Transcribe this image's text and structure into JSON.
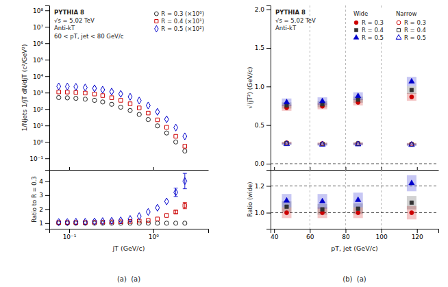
{
  "chart_data": [
    {
      "type": "scatter",
      "log": true,
      "xlim": [
        0.058,
        4.5
      ],
      "ylim": [
        0.02,
        200000000
      ],
      "xticks": [
        {
          "value": 0.1,
          "label": "10⁻¹"
        },
        {
          "value": 1,
          "label": "10⁰"
        }
      ],
      "yticks": [
        {
          "value": 0.1,
          "label": "10⁻¹"
        },
        {
          "value": 1,
          "label": "10⁰"
        },
        {
          "value": 10,
          "label": "10¹"
        },
        {
          "value": 100,
          "label": "10²"
        },
        {
          "value": 1000,
          "label": "10³"
        },
        {
          "value": 10000,
          "label": "10⁴"
        },
        {
          "value": 100000,
          "label": "10⁵"
        },
        {
          "value": 1000000,
          "label": "10⁶"
        },
        {
          "value": 10000000,
          "label": "10⁷"
        },
        {
          "value": 100000000,
          "label": "10⁸"
        }
      ],
      "tick_labels": "y",
      "ylabel": "1/Njets 1/jT dN/djT (c²/GeV²)",
      "annotations": [
        "PYTHIA 8",
        "√s = 5.02 TeV",
        "Anti-kT",
        "60 < pT, jet < 80 GeV/c"
      ],
      "legend": "upper right",
      "x": [
        0.075,
        0.095,
        0.12,
        0.155,
        0.2,
        0.25,
        0.32,
        0.41,
        0.53,
        0.68,
        0.87,
        1.12,
        1.44,
        1.85,
        2.37
      ],
      "series": [
        {
          "name": "R = 0.3 (×10⁰)",
          "color": "#222222",
          "marker": "circle-open",
          "values": [
            500,
            480,
            450,
            400,
            340,
            270,
            195,
            130,
            82,
            47,
            23,
            9.5,
            3.5,
            1.0,
            0.28
          ]
        },
        {
          "name": "R = 0.4 (×10¹)",
          "color": "#cc0000",
          "marker": "square-open",
          "values": [
            1100,
            1080,
            1020,
            940,
            820,
            660,
            490,
            340,
            210,
            118,
            57,
            22,
            7.8,
            2.2,
            0.55
          ]
        },
        {
          "name": "R = 0.5 (×10²)",
          "color": "#0000cc",
          "marker": "diamond-open",
          "values": [
            2400,
            2350,
            2250,
            2050,
            1820,
            1500,
            1150,
            840,
            560,
            330,
            165,
            68,
            24,
            7.5,
            2.2
          ]
        }
      ]
    },
    {
      "type": "scatter",
      "log": "x",
      "xlim": [
        0.058,
        4.5
      ],
      "ylim": [
        0.6,
        4.8
      ],
      "xticks": [
        {
          "value": 0.1,
          "label": "10⁻¹"
        },
        {
          "value": 1,
          "label": "10⁰"
        }
      ],
      "yticks": [
        1,
        2,
        3,
        4
      ],
      "xlabel": "jT (GeV/c)",
      "ylabel": "Ratio to R = 0.3",
      "caption": "(a)  (a)",
      "x": [
        0.075,
        0.095,
        0.12,
        0.155,
        0.2,
        0.25,
        0.32,
        0.41,
        0.53,
        0.68,
        0.87,
        1.12,
        1.44,
        1.85,
        2.37
      ],
      "series": [
        {
          "color": "#222222",
          "marker": "circle-open",
          "values": [
            1.0,
            1.0,
            1.0,
            1.0,
            1.0,
            1.0,
            1.0,
            1.0,
            1.0,
            1.0,
            1.0,
            1.0,
            1.0,
            1.0,
            1.0
          ]
        },
        {
          "color": "#cc0000",
          "marker": "square-open",
          "values": [
            1.05,
            1.05,
            1.05,
            1.05,
            1.07,
            1.08,
            1.09,
            1.1,
            1.12,
            1.15,
            1.2,
            1.3,
            1.55,
            1.8,
            2.25
          ],
          "errors": [
            0.0,
            0.0,
            0.0,
            0.0,
            0.0,
            0.0,
            0.0,
            0.0,
            0.0,
            0.0,
            0.0,
            0.0,
            0.0,
            0.12,
            0.22
          ]
        },
        {
          "color": "#0000cc",
          "marker": "diamond-open",
          "values": [
            1.08,
            1.08,
            1.1,
            1.1,
            1.12,
            1.15,
            1.17,
            1.2,
            1.3,
            1.5,
            1.8,
            2.1,
            2.55,
            3.2,
            4.0
          ],
          "errors": [
            0.0,
            0.0,
            0.0,
            0.0,
            0.0,
            0.0,
            0.0,
            0.0,
            0.0,
            0.0,
            0.0,
            0.0,
            0.0,
            0.3,
            0.55
          ]
        }
      ]
    },
    {
      "type": "scatter",
      "xlim": [
        38,
        132
      ],
      "ylim": [
        -0.08,
        2.05
      ],
      "xticks": [
        40,
        60,
        80,
        100,
        120
      ],
      "yticks": [
        {
          "value": 0,
          "label": "0.0"
        },
        0.5,
        {
          "value": 1,
          "label": "1.0"
        },
        1.5,
        {
          "value": 2,
          "label": "2.0"
        }
      ],
      "tick_labels": "y",
      "ylabel": "√⟨jT²⟩ (GeV/c)",
      "annotations": [
        "PYTHIA 8",
        "√s = 5.02 TeV",
        "Anti-kT"
      ],
      "legend": "upper right",
      "hlines": [
        0
      ],
      "vlines": [
        60,
        80,
        100
      ],
      "x": [
        47,
        67,
        87,
        117
      ],
      "series": [
        {
          "group": "Wide",
          "name": "R = 0.3",
          "color": "#cc0000",
          "marker": "circle",
          "values": [
            0.725,
            0.745,
            0.795,
            0.865
          ],
          "band": [
            0.04,
            0.04,
            0.04,
            0.05
          ]
        },
        {
          "group": "Wide",
          "name": "R = 0.4",
          "color": "#333333",
          "marker": "square",
          "values": [
            0.755,
            0.77,
            0.83,
            0.955
          ],
          "band": [
            0.04,
            0.04,
            0.04,
            0.05
          ]
        },
        {
          "group": "Wide",
          "name": "R = 0.5",
          "color": "#0000cc",
          "marker": "triangle",
          "values": [
            0.795,
            0.81,
            0.875,
            1.065
          ],
          "band": [
            0.05,
            0.05,
            0.05,
            0.06
          ]
        },
        {
          "group": "Narrow",
          "name": "R = 0.3",
          "color": "#cc0000",
          "marker": "circle-open",
          "values": [
            0.27,
            0.26,
            0.26,
            0.255
          ],
          "band": [
            0.015,
            0.015,
            0.015,
            0.015
          ]
        },
        {
          "group": "Narrow",
          "name": "R = 0.4",
          "color": "#333333",
          "marker": "square-open",
          "values": [
            0.265,
            0.255,
            0.26,
            0.25
          ],
          "band": [
            0.015,
            0.015,
            0.015,
            0.015
          ]
        },
        {
          "group": "Narrow",
          "name": "R = 0.5",
          "color": "#0000cc",
          "marker": "triangle-open",
          "values": [
            0.255,
            0.248,
            0.252,
            0.245
          ],
          "band": [
            0.015,
            0.015,
            0.015,
            0.015
          ]
        }
      ]
    },
    {
      "type": "scatter",
      "xlim": [
        38,
        132
      ],
      "ylim": [
        0.88,
        1.32
      ],
      "xticks": [
        40,
        60,
        80,
        100,
        120
      ],
      "yticks": [
        {
          "value": 1,
          "label": "1.0"
        },
        1.2
      ],
      "xlabel": "pT, jet (GeV/c)",
      "ylabel": "Ratio (wide)",
      "caption": "(b)  (a)",
      "hlines": [
        1.0,
        1.2
      ],
      "vlines": [
        60,
        80,
        100
      ],
      "x": [
        47,
        67,
        87,
        117
      ],
      "series": [
        {
          "color": "#cc0000",
          "marker": "circle",
          "values": [
            1.0,
            1.0,
            1.0,
            1.0
          ],
          "band": [
            0.04,
            0.04,
            0.04,
            0.05
          ]
        },
        {
          "color": "#333333",
          "marker": "square",
          "values": [
            1.045,
            1.025,
            1.03,
            1.075
          ],
          "band": [
            0.04,
            0.04,
            0.04,
            0.05
          ]
        },
        {
          "color": "#0000cc",
          "marker": "triangle",
          "values": [
            1.09,
            1.085,
            1.095,
            1.22
          ],
          "band": [
            0.05,
            0.055,
            0.055,
            0.06
          ]
        }
      ]
    }
  ]
}
